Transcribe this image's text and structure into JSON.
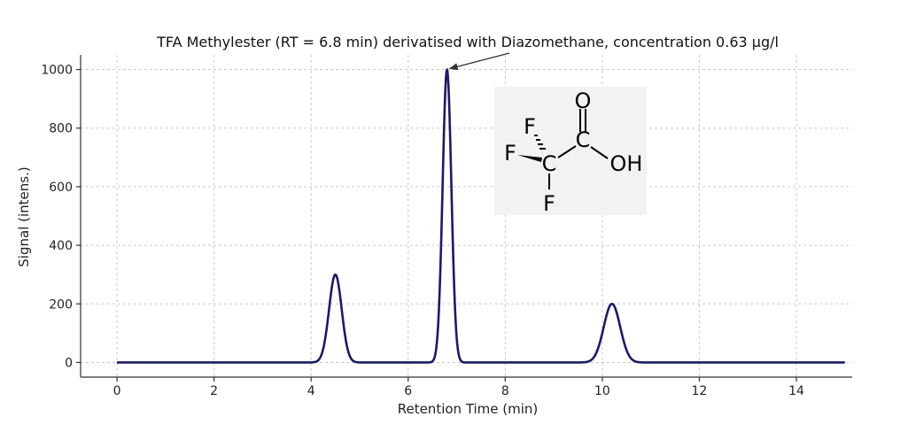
{
  "chart_data": {
    "type": "line",
    "title": "TFA Methylester (RT = 6.8 min) derivatised with Diazomethane, concentration 0.63 µg/l",
    "xlabel": "Retention Time (min)",
    "ylabel": "Signal (intens.)",
    "xlim": [
      -0.75,
      15.15
    ],
    "ylim": [
      -50,
      1050
    ],
    "xticks": [
      0,
      2,
      4,
      6,
      8,
      10,
      12,
      14
    ],
    "yticks": [
      0,
      200,
      400,
      600,
      800,
      1000
    ],
    "grid": true,
    "x_start": 0,
    "x_end": 15,
    "series": [
      {
        "color": "#1b1b64",
        "peaks": [
          {
            "retention_time": 4.5,
            "height": 300
          },
          {
            "retention_time": 6.8,
            "height": 1000
          },
          {
            "retention_time": 10.2,
            "height": 200
          }
        ]
      }
    ],
    "annotation": {
      "text": "",
      "arrow_target": {
        "x": 6.8,
        "y": 1000
      }
    },
    "inset": {
      "description": "Trifluoroacetic acid structure",
      "atoms": {
        "o_top": "O",
        "c_carbonyl": "C",
        "oh": "OH",
        "c_cf3": "C",
        "f_top": "F",
        "f_left": "F",
        "f_bottom": "F"
      },
      "background": "#f2f2f2"
    }
  }
}
